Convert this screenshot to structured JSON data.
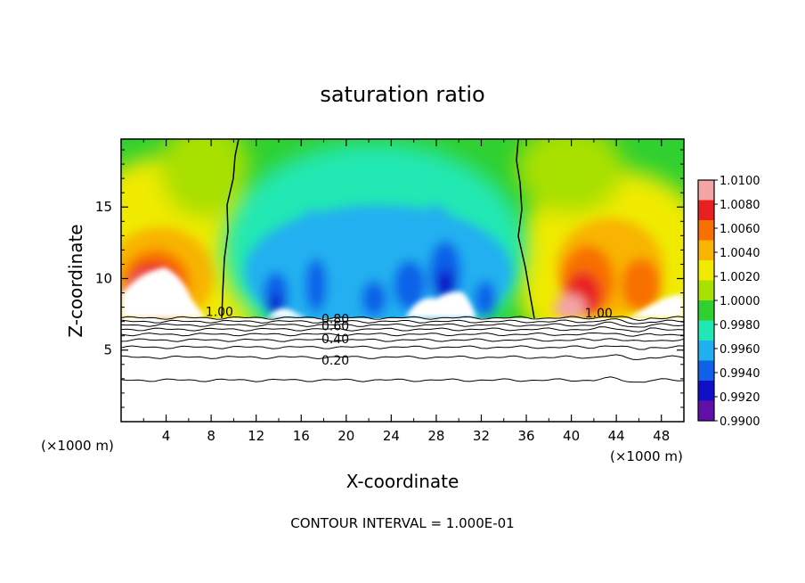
{
  "chart_data": {
    "type": "heatmap",
    "title": "saturation ratio",
    "xlabel": "X-coordinate",
    "ylabel": "Z-coordinate",
    "x_unit_left": "(×1000 m)",
    "x_unit_right": "(×1000 m)",
    "footer": "CONTOUR INTERVAL = 1.000E-01",
    "xlim": [
      0,
      50
    ],
    "ylim": [
      0,
      19.75
    ],
    "x_ticks": [
      "4",
      "8",
      "12",
      "16",
      "20",
      "24",
      "28",
      "32",
      "36",
      "40",
      "44",
      "48"
    ],
    "x_tick_values": [
      4,
      8,
      12,
      16,
      20,
      24,
      28,
      32,
      36,
      40,
      44,
      48
    ],
    "y_ticks": [
      "5",
      "10",
      "15"
    ],
    "y_tick_values": [
      5,
      10,
      15
    ],
    "grid": false,
    "colorbar": {
      "levels": [
        "1.0100",
        "1.0080",
        "1.0060",
        "1.0040",
        "1.0020",
        "1.0000",
        "0.9980",
        "0.9960",
        "0.9940",
        "0.9920",
        "0.9900"
      ],
      "level_values": [
        1.01,
        1.008,
        1.006,
        1.004,
        1.002,
        1.0,
        0.998,
        0.996,
        0.994,
        0.992,
        0.99
      ],
      "colors": [
        "#f3a4a4",
        "#e82020",
        "#f87000",
        "#f8b400",
        "#f0ea00",
        "#a8e000",
        "#30d030",
        "#20e8b4",
        "#20b0f0",
        "#1060e8",
        "#1010c8",
        "#6010a8"
      ]
    },
    "contour_labels": [
      {
        "text": "1.00",
        "x": 7.5,
        "z": 7.7
      },
      {
        "text": "1.00",
        "x": 41.2,
        "z": 7.6
      },
      {
        "text": "0.80",
        "x": 17.8,
        "z": 7.2
      },
      {
        "text": "0.60",
        "x": 17.8,
        "z": 6.7
      },
      {
        "text": "0.40",
        "x": 17.8,
        "z": 5.8
      },
      {
        "text": "0.20",
        "x": 17.8,
        "z": 4.3
      }
    ],
    "contour_line_levels": [
      7.25,
      7.0,
      6.75,
      6.45,
      6.1,
      5.7,
      5.2,
      4.5,
      2.9
    ]
  }
}
